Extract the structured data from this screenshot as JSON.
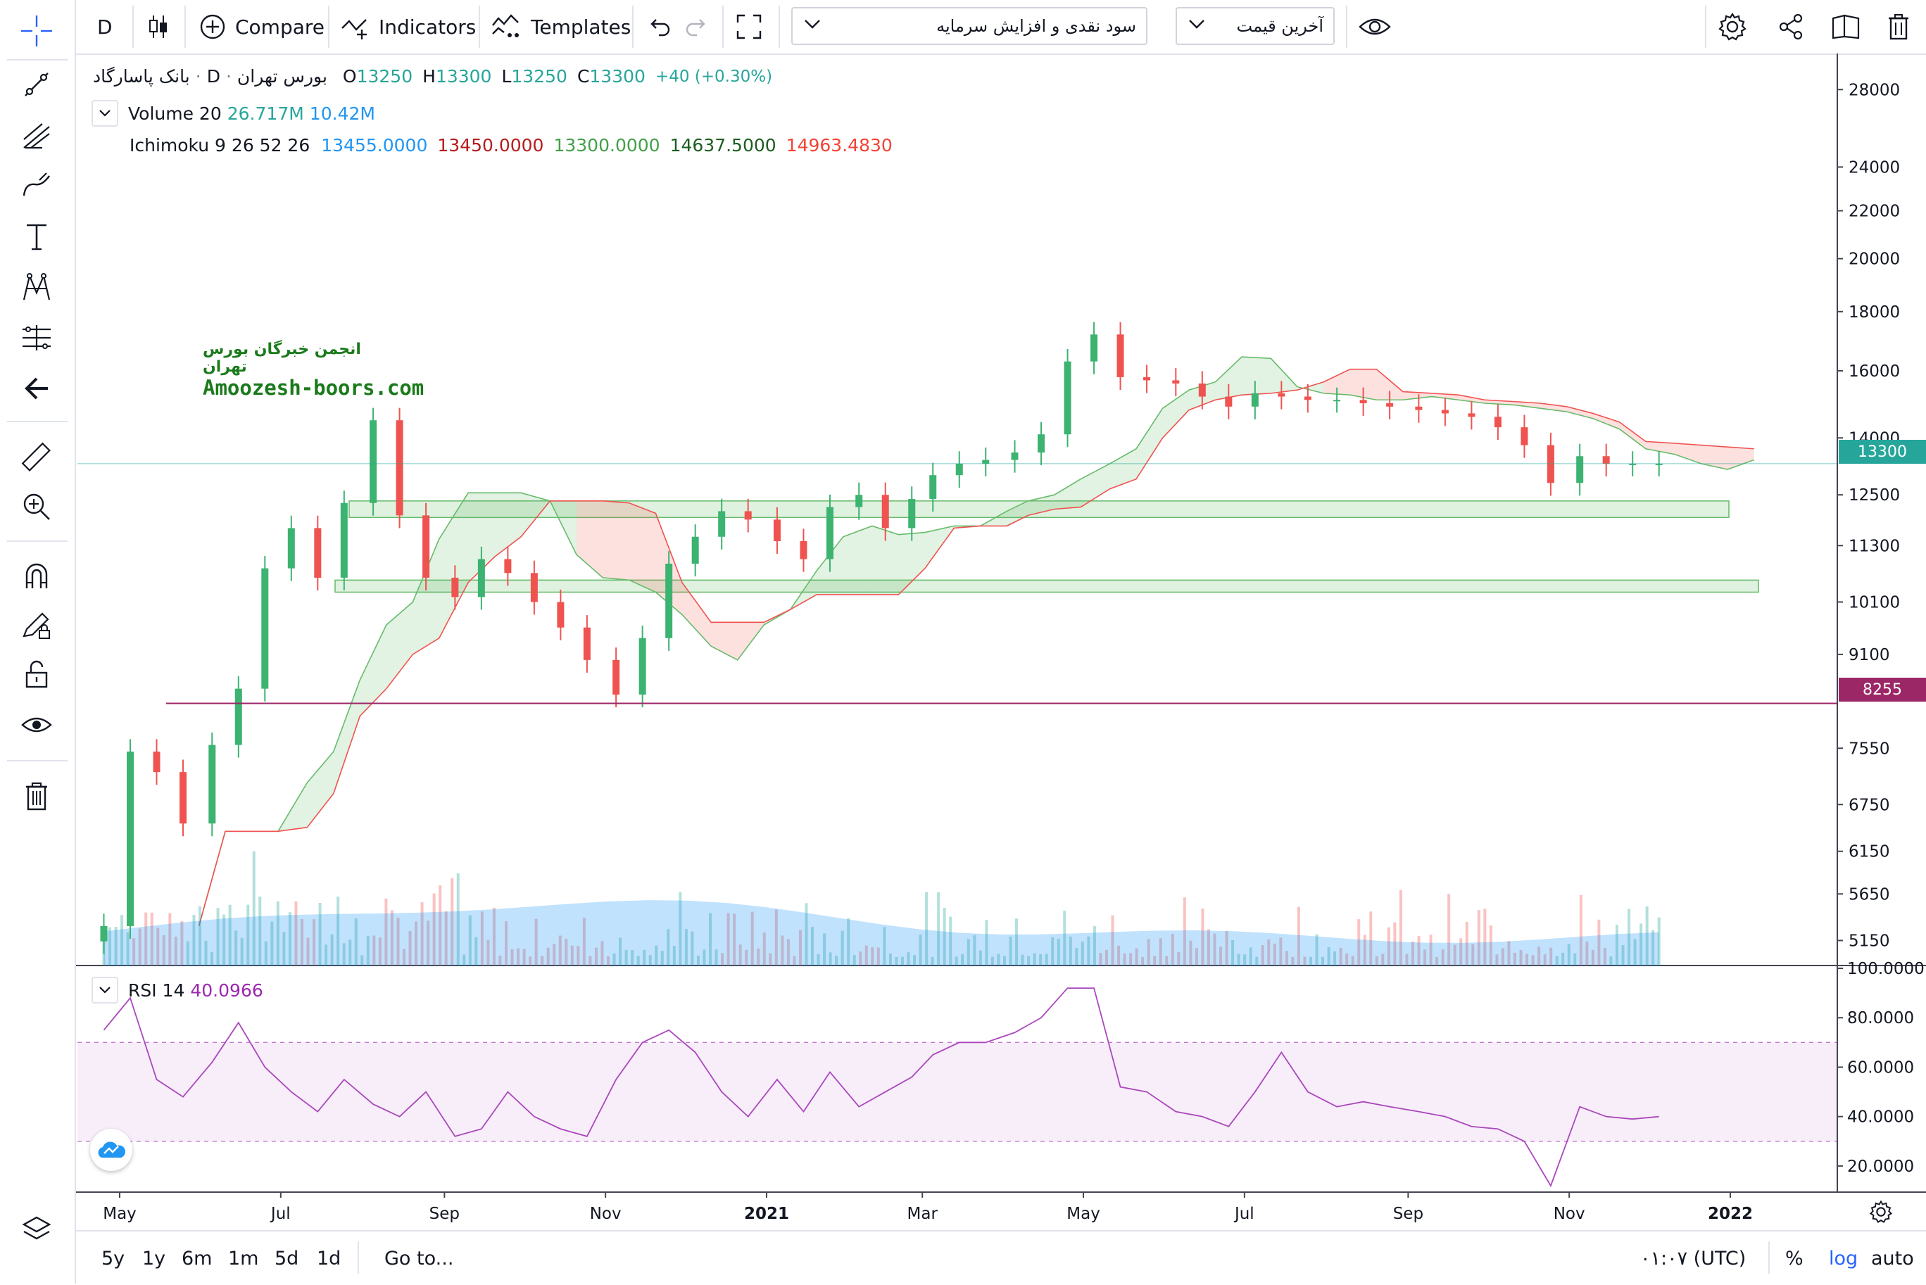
{
  "toolbar": {
    "interval": "D",
    "compare_label": "Compare",
    "indicators_label": "Indicators",
    "templates_label": "Templates",
    "dropdown1_value": "سود نقدی و افزایش سرمایه",
    "dropdown2_value": "آخرین قیمت"
  },
  "legend": {
    "symbol_name": "بانک پاسارگاد",
    "interval": "D",
    "exchange": "بورس تهران",
    "open_label": "O",
    "open": "13250",
    "high_label": "H",
    "high": "13300",
    "low_label": "L",
    "low": "13250",
    "close_label": "C",
    "close": "13300",
    "change": "+40 (+0.30%)",
    "volume_name": "Volume 20",
    "volume_value": "26.717M",
    "volume_ma": "10.42M",
    "ichimoku_name": "Ichimoku 9 26 52 26",
    "ichimoku_values": [
      "13455.0000",
      "13450.0000",
      "13300.0000",
      "14637.5000",
      "14963.4830"
    ],
    "ichimoku_colors": [
      "#2196f3",
      "#b71c1c",
      "#43a047",
      "#1b5e20",
      "#f44336"
    ]
  },
  "rsi_legend": {
    "name": "RSI 14",
    "value": "40.0966"
  },
  "watermark": {
    "line1": "انجمن خبرگان بورس تهران",
    "line2": "Amoozesh-boors.com"
  },
  "price_labels": {
    "last": "13300",
    "line": "8255"
  },
  "price_axis_ticks": [
    "28000",
    "24000",
    "22000",
    "20000",
    "18000",
    "16000",
    "14000",
    "12500",
    "11300",
    "10100",
    "9100",
    "7550",
    "6750",
    "6150",
    "5650",
    "5150"
  ],
  "rsi_axis_ticks": [
    "100.0000",
    "80.0000",
    "60.0000",
    "40.0000",
    "20.0000"
  ],
  "time_axis_ticks": [
    "May",
    "Jul",
    "Sep",
    "Nov",
    "2021",
    "Mar",
    "May",
    "Jul",
    "Sep",
    "Nov",
    "2022"
  ],
  "bottom": {
    "ranges": [
      "5y",
      "1y",
      "6m",
      "1m",
      "5d",
      "1d"
    ],
    "goto": "Go to...",
    "time": "۰۱:۰۷ (UTC)",
    "percent": "%",
    "log": "log",
    "auto": "auto"
  },
  "colors": {
    "up": "#26a69a",
    "upCandle": "#3cb371",
    "down": "#ef5350",
    "rsi": "#ab47bc",
    "line": "#9c27b0"
  },
  "chart_data": {
    "type": "candlestick",
    "symbol": "بانک پاسارگاد",
    "scale": "log",
    "ylim": [
      4900,
      30000
    ],
    "horizontal_line": 8255,
    "last_price": 13300,
    "support_zones": [
      [
        11950,
        12350
      ],
      [
        10300,
        10550
      ]
    ],
    "close_series": {
      "x": [
        "2020-04-25",
        "2020-05-05",
        "2020-05-15",
        "2020-05-25",
        "2020-06-05",
        "2020-06-15",
        "2020-06-25",
        "2020-07-05",
        "2020-07-15",
        "2020-07-25",
        "2020-08-05",
        "2020-08-15",
        "2020-08-25",
        "2020-09-05",
        "2020-09-15",
        "2020-09-25",
        "2020-10-05",
        "2020-10-15",
        "2020-10-25",
        "2020-11-05",
        "2020-11-15",
        "2020-11-25",
        "2020-12-05",
        "2020-12-15",
        "2020-12-25",
        "2021-01-05",
        "2021-01-15",
        "2021-01-25",
        "2021-02-05",
        "2021-02-15",
        "2021-02-25",
        "2021-03-05",
        "2021-03-15",
        "2021-03-25",
        "2021-04-05",
        "2021-04-15",
        "2021-04-25",
        "2021-05-05",
        "2021-05-15",
        "2021-05-25",
        "2021-06-05",
        "2021-06-15",
        "2021-06-25",
        "2021-07-05",
        "2021-07-15",
        "2021-07-25",
        "2021-08-05",
        "2021-08-15",
        "2021-08-25",
        "2021-09-05",
        "2021-09-15",
        "2021-09-25",
        "2021-10-05",
        "2021-10-15",
        "2021-10-25",
        "2021-11-05",
        "2021-11-15",
        "2021-11-25",
        "2021-12-05"
      ],
      "close": [
        5300,
        7500,
        7200,
        6500,
        7600,
        8500,
        10800,
        11700,
        10600,
        12300,
        14500,
        12000,
        10600,
        10200,
        11000,
        10700,
        10100,
        9600,
        9000,
        8400,
        9400,
        10900,
        11500,
        12100,
        11900,
        11400,
        11000,
        12200,
        12500,
        11700,
        12400,
        13000,
        13300,
        13400,
        13600,
        14100,
        16300,
        17200,
        15800,
        15700,
        15600,
        15200,
        14900,
        15300,
        15200,
        15100,
        15100,
        15000,
        14900,
        14800,
        14700,
        14600,
        14300,
        13800,
        12800,
        13500,
        13300,
        13300,
        13300
      ]
    },
    "ichimoku": {
      "params": [
        9,
        26,
        52,
        26
      ],
      "values": [
        13455.0,
        13450.0,
        13300.0,
        14637.5,
        14963.483
      ]
    },
    "volume": {
      "name": "Volume 20",
      "last": "26.717M",
      "ma": "10.42M"
    },
    "rsi": {
      "name": "RSI 14",
      "last": 40.0966,
      "ylim": [
        10,
        100
      ],
      "bands": [
        30,
        70
      ],
      "values": [
        75,
        88,
        55,
        48,
        62,
        78,
        60,
        50,
        42,
        55,
        45,
        40,
        50,
        32,
        35,
        50,
        40,
        35,
        32,
        55,
        70,
        75,
        66,
        50,
        40,
        55,
        42,
        58,
        44,
        50,
        56,
        65,
        70,
        70,
        74,
        80,
        92,
        92,
        52,
        50,
        42,
        40,
        36,
        50,
        66,
        50,
        44,
        46,
        44,
        42,
        40,
        36,
        35,
        30,
        12,
        44,
        40,
        39,
        40
      ]
    }
  }
}
